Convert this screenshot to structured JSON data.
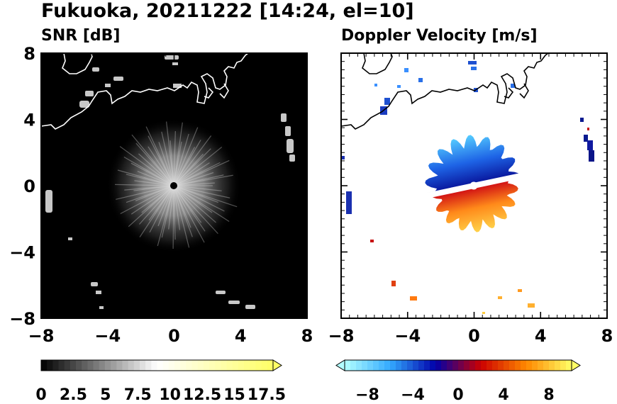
{
  "title": "Fukuoka, 20211222 [14:24, el=10]",
  "chart_data": [
    {
      "type": "heatmap",
      "panel": "left",
      "subtitle": "SNR [dB]",
      "xlim": [
        -8,
        8
      ],
      "ylim": [
        -8,
        8
      ],
      "xticks": [
        -8,
        -4,
        0,
        4,
        8
      ],
      "yticks": [
        -8,
        -4,
        0,
        4,
        8
      ],
      "xtick_labels": [
        "−8",
        "−4",
        "0",
        "4",
        "8"
      ],
      "ytick_labels": [
        "−8",
        "−4",
        "0",
        "4",
        "8"
      ],
      "colorbar": {
        "ticks": [
          0,
          2.5,
          5,
          7.5,
          10,
          12.5,
          15,
          17.5
        ],
        "labels": [
          "0",
          "2.5",
          "5",
          "7.5",
          "10",
          "12.5",
          "15",
          "17.5"
        ],
        "range": [
          0,
          18
        ],
        "extend": "max",
        "colors": [
          "#000000",
          "#ffffff",
          "#ffff66"
        ]
      },
      "background": "#000000",
      "coast_color": "#ffffff",
      "center": [
        0,
        0
      ]
    },
    {
      "type": "heatmap",
      "panel": "right",
      "subtitle": "Doppler Velocity [m/s]",
      "xlim": [
        -8,
        8
      ],
      "ylim": [
        -8,
        8
      ],
      "xticks": [
        -8,
        -4,
        0,
        4,
        8
      ],
      "yticks": [
        -8,
        -4,
        0,
        4,
        8
      ],
      "xtick_labels": [
        "−8",
        "−4",
        "0",
        "4",
        "8"
      ],
      "ytick_labels": [],
      "colorbar": {
        "ticks": [
          -8,
          -4,
          0,
          4,
          8
        ],
        "labels": [
          "−8",
          "−4",
          "0",
          "4",
          "8"
        ],
        "range": [
          -10,
          10
        ],
        "extend": "both",
        "colors": [
          "#b3ffff",
          "#33aaff",
          "#0000aa",
          "#cc0000",
          "#ff8800",
          "#ffff66"
        ]
      },
      "background": "#ffffff",
      "coast_color": "#000000",
      "center": [
        0,
        0
      ]
    }
  ]
}
